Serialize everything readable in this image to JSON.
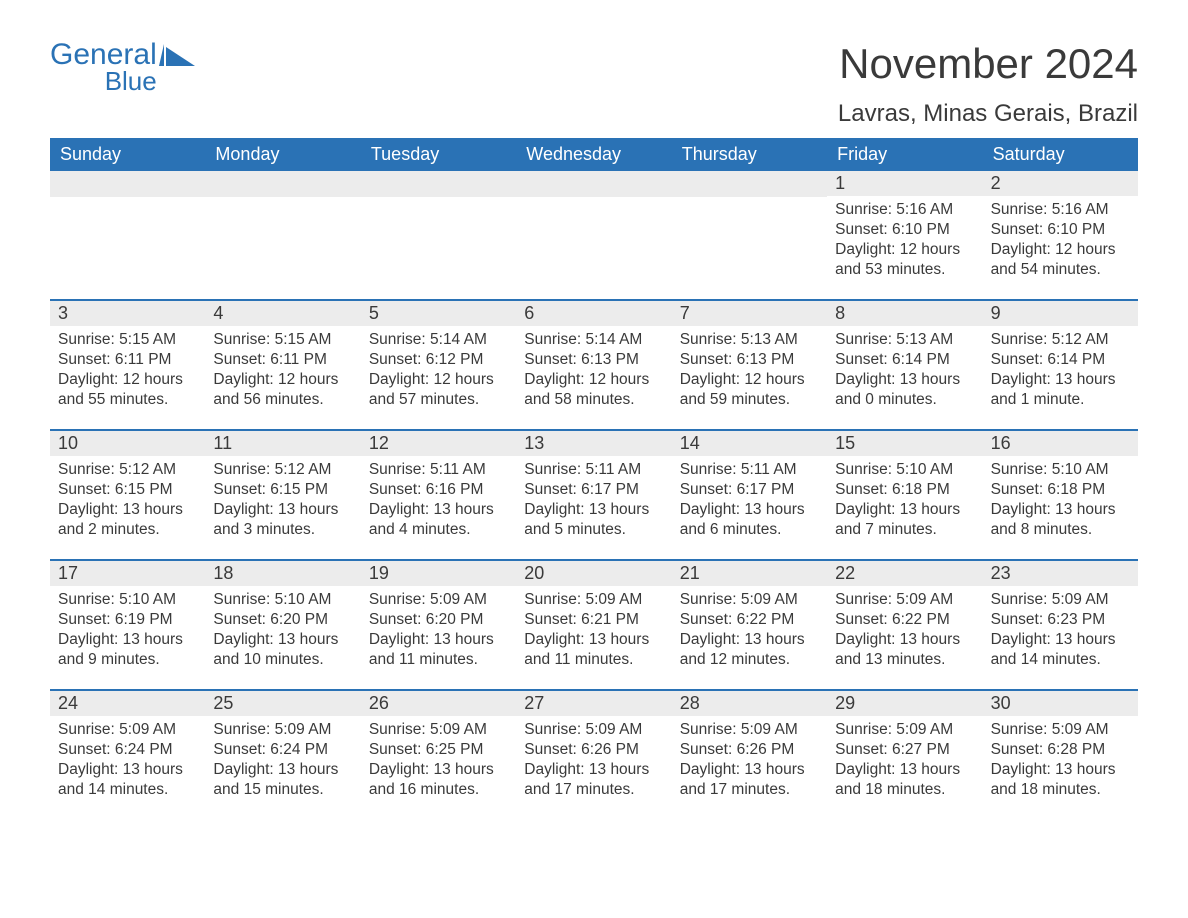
{
  "colors": {
    "brand": "#2a72b5",
    "text": "#3a3a3a",
    "header_bg": "#2a72b5",
    "header_text": "#ffffff",
    "daynum_bg": "#ececec",
    "row_border": "#2a72b5",
    "background": "#ffffff"
  },
  "typography": {
    "title_fontsize": 42,
    "location_fontsize": 24,
    "weekday_fontsize": 18,
    "daynum_fontsize": 18,
    "body_fontsize": 15.5,
    "font_family": "Arial"
  },
  "logo": {
    "general": "General",
    "blue": "Blue"
  },
  "title": "November 2024",
  "location": "Lavras, Minas Gerais, Brazil",
  "weekdays": [
    "Sunday",
    "Monday",
    "Tuesday",
    "Wednesday",
    "Thursday",
    "Friday",
    "Saturday"
  ],
  "labels": {
    "sunrise_prefix": "Sunrise: ",
    "sunset_prefix": "Sunset: ",
    "daylight_prefix": "Daylight: "
  },
  "weeks": [
    [
      {
        "empty": true
      },
      {
        "empty": true
      },
      {
        "empty": true
      },
      {
        "empty": true
      },
      {
        "empty": true
      },
      {
        "day": "1",
        "sunrise": "5:16 AM",
        "sunset": "6:10 PM",
        "daylight": "12 hours and 53 minutes."
      },
      {
        "day": "2",
        "sunrise": "5:16 AM",
        "sunset": "6:10 PM",
        "daylight": "12 hours and 54 minutes."
      }
    ],
    [
      {
        "day": "3",
        "sunrise": "5:15 AM",
        "sunset": "6:11 PM",
        "daylight": "12 hours and 55 minutes."
      },
      {
        "day": "4",
        "sunrise": "5:15 AM",
        "sunset": "6:11 PM",
        "daylight": "12 hours and 56 minutes."
      },
      {
        "day": "5",
        "sunrise": "5:14 AM",
        "sunset": "6:12 PM",
        "daylight": "12 hours and 57 minutes."
      },
      {
        "day": "6",
        "sunrise": "5:14 AM",
        "sunset": "6:13 PM",
        "daylight": "12 hours and 58 minutes."
      },
      {
        "day": "7",
        "sunrise": "5:13 AM",
        "sunset": "6:13 PM",
        "daylight": "12 hours and 59 minutes."
      },
      {
        "day": "8",
        "sunrise": "5:13 AM",
        "sunset": "6:14 PM",
        "daylight": "13 hours and 0 minutes."
      },
      {
        "day": "9",
        "sunrise": "5:12 AM",
        "sunset": "6:14 PM",
        "daylight": "13 hours and 1 minute."
      }
    ],
    [
      {
        "day": "10",
        "sunrise": "5:12 AM",
        "sunset": "6:15 PM",
        "daylight": "13 hours and 2 minutes."
      },
      {
        "day": "11",
        "sunrise": "5:12 AM",
        "sunset": "6:15 PM",
        "daylight": "13 hours and 3 minutes."
      },
      {
        "day": "12",
        "sunrise": "5:11 AM",
        "sunset": "6:16 PM",
        "daylight": "13 hours and 4 minutes."
      },
      {
        "day": "13",
        "sunrise": "5:11 AM",
        "sunset": "6:17 PM",
        "daylight": "13 hours and 5 minutes."
      },
      {
        "day": "14",
        "sunrise": "5:11 AM",
        "sunset": "6:17 PM",
        "daylight": "13 hours and 6 minutes."
      },
      {
        "day": "15",
        "sunrise": "5:10 AM",
        "sunset": "6:18 PM",
        "daylight": "13 hours and 7 minutes."
      },
      {
        "day": "16",
        "sunrise": "5:10 AM",
        "sunset": "6:18 PM",
        "daylight": "13 hours and 8 minutes."
      }
    ],
    [
      {
        "day": "17",
        "sunrise": "5:10 AM",
        "sunset": "6:19 PM",
        "daylight": "13 hours and 9 minutes."
      },
      {
        "day": "18",
        "sunrise": "5:10 AM",
        "sunset": "6:20 PM",
        "daylight": "13 hours and 10 minutes."
      },
      {
        "day": "19",
        "sunrise": "5:09 AM",
        "sunset": "6:20 PM",
        "daylight": "13 hours and 11 minutes."
      },
      {
        "day": "20",
        "sunrise": "5:09 AM",
        "sunset": "6:21 PM",
        "daylight": "13 hours and 11 minutes."
      },
      {
        "day": "21",
        "sunrise": "5:09 AM",
        "sunset": "6:22 PM",
        "daylight": "13 hours and 12 minutes."
      },
      {
        "day": "22",
        "sunrise": "5:09 AM",
        "sunset": "6:22 PM",
        "daylight": "13 hours and 13 minutes."
      },
      {
        "day": "23",
        "sunrise": "5:09 AM",
        "sunset": "6:23 PM",
        "daylight": "13 hours and 14 minutes."
      }
    ],
    [
      {
        "day": "24",
        "sunrise": "5:09 AM",
        "sunset": "6:24 PM",
        "daylight": "13 hours and 14 minutes."
      },
      {
        "day": "25",
        "sunrise": "5:09 AM",
        "sunset": "6:24 PM",
        "daylight": "13 hours and 15 minutes."
      },
      {
        "day": "26",
        "sunrise": "5:09 AM",
        "sunset": "6:25 PM",
        "daylight": "13 hours and 16 minutes."
      },
      {
        "day": "27",
        "sunrise": "5:09 AM",
        "sunset": "6:26 PM",
        "daylight": "13 hours and 17 minutes."
      },
      {
        "day": "28",
        "sunrise": "5:09 AM",
        "sunset": "6:26 PM",
        "daylight": "13 hours and 17 minutes."
      },
      {
        "day": "29",
        "sunrise": "5:09 AM",
        "sunset": "6:27 PM",
        "daylight": "13 hours and 18 minutes."
      },
      {
        "day": "30",
        "sunrise": "5:09 AM",
        "sunset": "6:28 PM",
        "daylight": "13 hours and 18 minutes."
      }
    ]
  ]
}
